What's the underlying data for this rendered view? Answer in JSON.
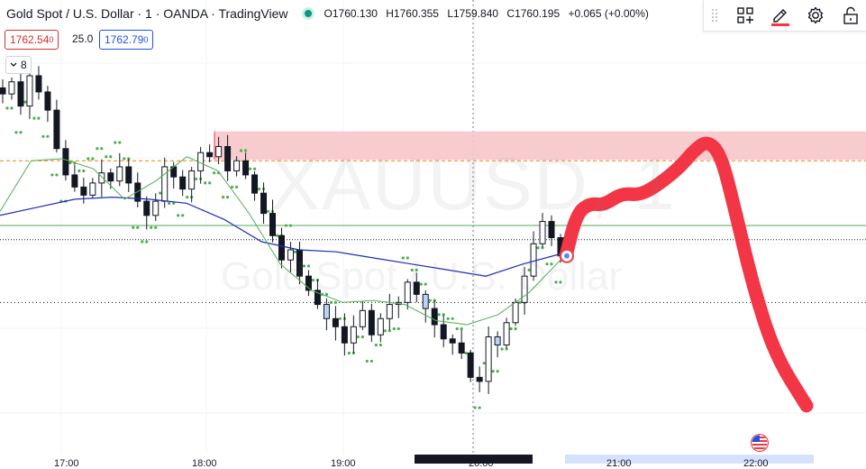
{
  "header": {
    "symbol_title": "Gold Spot / U.S. Dollar · 1 · OANDA · TradingView",
    "open": "O1760.130",
    "high": "H1760.355",
    "low": "L1759.840",
    "close": "C1760.195",
    "change": "+0.065 (+0.00%)",
    "market_status_color": "#089981"
  },
  "trade": {
    "sell_price": "1762.54",
    "sell_sup": "0",
    "spread": "25.0",
    "buy_price": "1762.79",
    "buy_sup": "0"
  },
  "indicators_toggle": {
    "count": "8"
  },
  "toolbar": {
    "icons": [
      "drag-handle-icon",
      "layout-grid-icon",
      "pencil-icon",
      "settings-gear-icon",
      "lock-icon"
    ],
    "active_color": "#f23645"
  },
  "watermark": {
    "symbol": "XAUUSD, 1",
    "name": "Gold Spot / U.S. Dollar"
  },
  "time_axis": {
    "ticks": [
      "17:00",
      "18:00",
      "19:00",
      "20:00",
      "21:00",
      "22:00"
    ]
  },
  "colors": {
    "up_candle": "#131722",
    "down_candle": "#131722",
    "highlight_candle": "#bbd3f5",
    "ma_long": "#1e2db5",
    "ma_short": "#4caf50",
    "psar": "#4caf50",
    "resistance_zone": "#f7c6c9",
    "level_line_orange": "#f57c00",
    "level_line_green": "#4caf50",
    "projection_stroke": "#f23645"
  },
  "chart_data": {
    "type": "candlestick",
    "series": [
      {
        "name": "XAUUSD 1m (approx. closes)",
        "values": [
          1768.2,
          1768.8,
          1767.6,
          1769.1,
          1768.3,
          1767.4,
          1765.5,
          1764.2,
          1763.6,
          1763.2,
          1763.8,
          1764.3,
          1763.9,
          1764.6,
          1763.8,
          1762.9,
          1762.2,
          1762.9,
          1764.6,
          1764.1,
          1763.5,
          1764.4,
          1765.3,
          1765.1,
          1765.6,
          1764.4,
          1764.9,
          1764.2,
          1763.3,
          1762.3,
          1761.2,
          1760.0,
          1760.5,
          1759.2,
          1758.5,
          1757.8,
          1757.1,
          1756.7,
          1755.9,
          1756.7,
          1757.5,
          1756.3,
          1757.1,
          1757.8,
          1757.9,
          1758.9,
          1758.3,
          1757.6,
          1756.8,
          1756.1,
          1755.9,
          1755.4,
          1754.2,
          1754.0,
          1756.2,
          1755.8,
          1756.9,
          1757.9,
          1759.2,
          1760.8,
          1761.9,
          1761.1,
          1760.2
        ]
      }
    ],
    "resistance_zone": [
      1764.95,
      1766.35
    ],
    "level_orange_dashed": 1764.9,
    "level_green": 1761.7,
    "level_black_dotted": 1761.0,
    "ma_long_series": [
      1762.2,
      1762.6,
      1763.0,
      1763.1,
      1763.0,
      1762.8,
      1762.0,
      1760.9,
      1760.5,
      1760.4,
      1760.1,
      1759.8,
      1759.5,
      1759.2,
      1759.8,
      1760.3
    ],
    "ma_short_series": [
      1762.4,
      1764.9,
      1765.0,
      1764.5,
      1763.0,
      1763.9,
      1765.1,
      1764.4,
      1762.3,
      1759.8,
      1758.5,
      1757.9,
      1758.0,
      1757.8,
      1757.0,
      1756.8,
      1757.3,
      1758.4,
      1760.0
    ],
    "projection_path": [
      1760.2,
      1762.3,
      1762.8,
      1762.7,
      1763.3,
      1763.2,
      1763.7,
      1764.6,
      1765.4,
      1765.9,
      1765.2,
      1762.6,
      1758.8,
      1755.3,
      1752.8
    ],
    "ylim": [
      1751.9,
      1769.9
    ],
    "title": "",
    "xlabel": "",
    "ylabel": ""
  }
}
